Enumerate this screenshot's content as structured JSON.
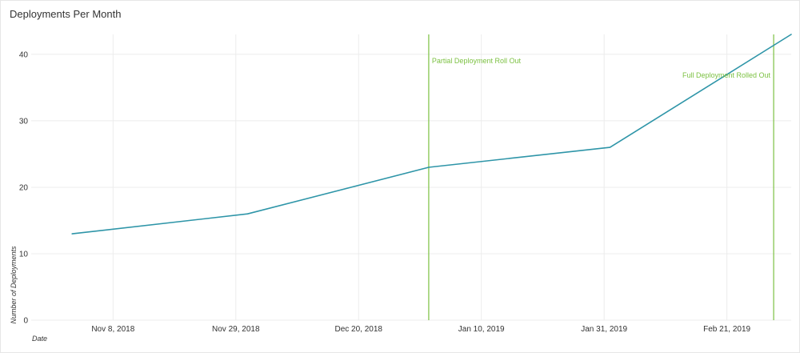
{
  "colors": {
    "line": "#2e95a8",
    "annotation": "#7cc142",
    "grid": "#ececec"
  },
  "chart_data": {
    "type": "line",
    "title": "Deployments Per Month",
    "xlabel": "Date",
    "ylabel": "Number of Deployments",
    "x_axis_type": "date",
    "xlim": [
      "2018-10-25",
      "2019-03-04"
    ],
    "ylim": [
      0,
      43
    ],
    "grid": true,
    "x_ticks": [
      {
        "date": "2018-11-08",
        "label": "Nov 8, 2018"
      },
      {
        "date": "2018-11-29",
        "label": "Nov 29, 2018"
      },
      {
        "date": "2018-12-20",
        "label": "Dec 20, 2018"
      },
      {
        "date": "2019-01-10",
        "label": "Jan 10, 2019"
      },
      {
        "date": "2019-01-31",
        "label": "Jan 31, 2019"
      },
      {
        "date": "2019-02-21",
        "label": "Feb 21, 2019"
      }
    ],
    "y_ticks": [
      {
        "value": 0,
        "label": "0"
      },
      {
        "value": 10,
        "label": "10"
      },
      {
        "value": 20,
        "label": "20"
      },
      {
        "value": 30,
        "label": "30"
      },
      {
        "value": 40,
        "label": "40"
      }
    ],
    "series": [
      {
        "x": [
          "2018-11-01",
          "2018-12-01",
          "2019-01-01",
          "2019-02-01",
          "2019-03-04"
        ],
        "y": [
          13,
          16,
          23,
          26,
          43
        ]
      }
    ],
    "annotations": [
      {
        "date": "2019-01-01",
        "label": "Partial Deployment Roll Out",
        "text_anchor": "start"
      },
      {
        "date": "2019-03-01",
        "label": "Full Deployment Rolled Out",
        "text_anchor": "end"
      }
    ]
  }
}
